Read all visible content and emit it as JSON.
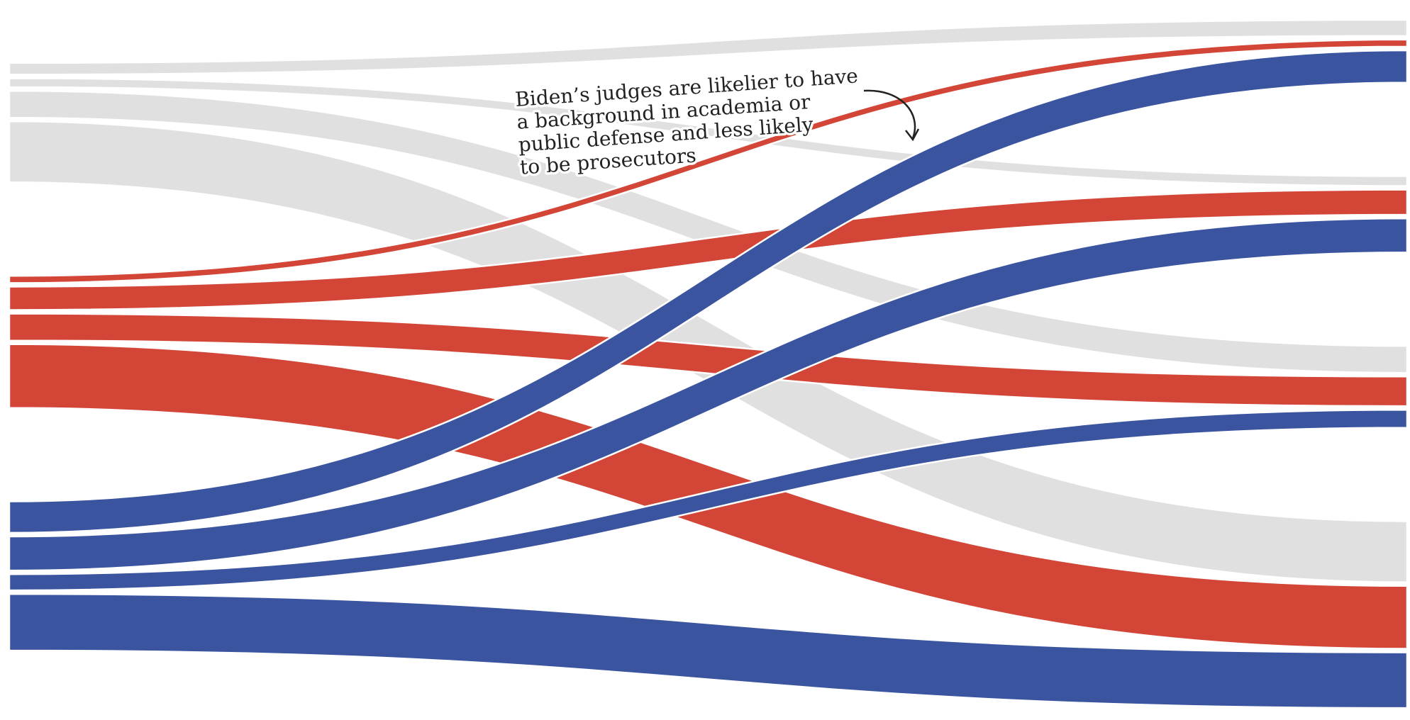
{
  "chart_data": {
    "type": "ribbon",
    "annotation": [
      "Biden’s judges are likelier to have",
      "a background in academia or",
      "public defense and less likely",
      "to be prosecutors"
    ],
    "series": [
      {
        "color": "#e0e0e0",
        "values": [
          13,
          18
        ]
      },
      {
        "color": "#e0e0e0",
        "values": [
          10,
          11
        ]
      },
      {
        "color": "#e0e0e0",
        "values": [
          30,
          30
        ]
      },
      {
        "color": "#e0e0e0",
        "values": [
          68,
          68
        ]
      },
      {
        "color": "#d24537",
        "values": [
          8,
          8
        ]
      },
      {
        "color": "#d24537",
        "values": [
          26,
          28
        ]
      },
      {
        "color": "#d24537",
        "values": [
          30,
          33
        ]
      },
      {
        "color": "#d24537",
        "values": [
          71,
          70
        ]
      },
      {
        "color": "#3a54a0",
        "values": [
          35,
          36
        ]
      },
      {
        "color": "#3a54a0",
        "values": [
          38,
          38
        ]
      },
      {
        "color": "#3a54a0",
        "values": [
          18,
          20
        ]
      },
      {
        "color": "#3a54a0",
        "values": [
          63,
          62
        ]
      }
    ],
    "right_order": [
      0,
      4,
      8,
      1,
      5,
      9,
      2,
      6,
      10,
      3,
      7,
      11
    ]
  }
}
